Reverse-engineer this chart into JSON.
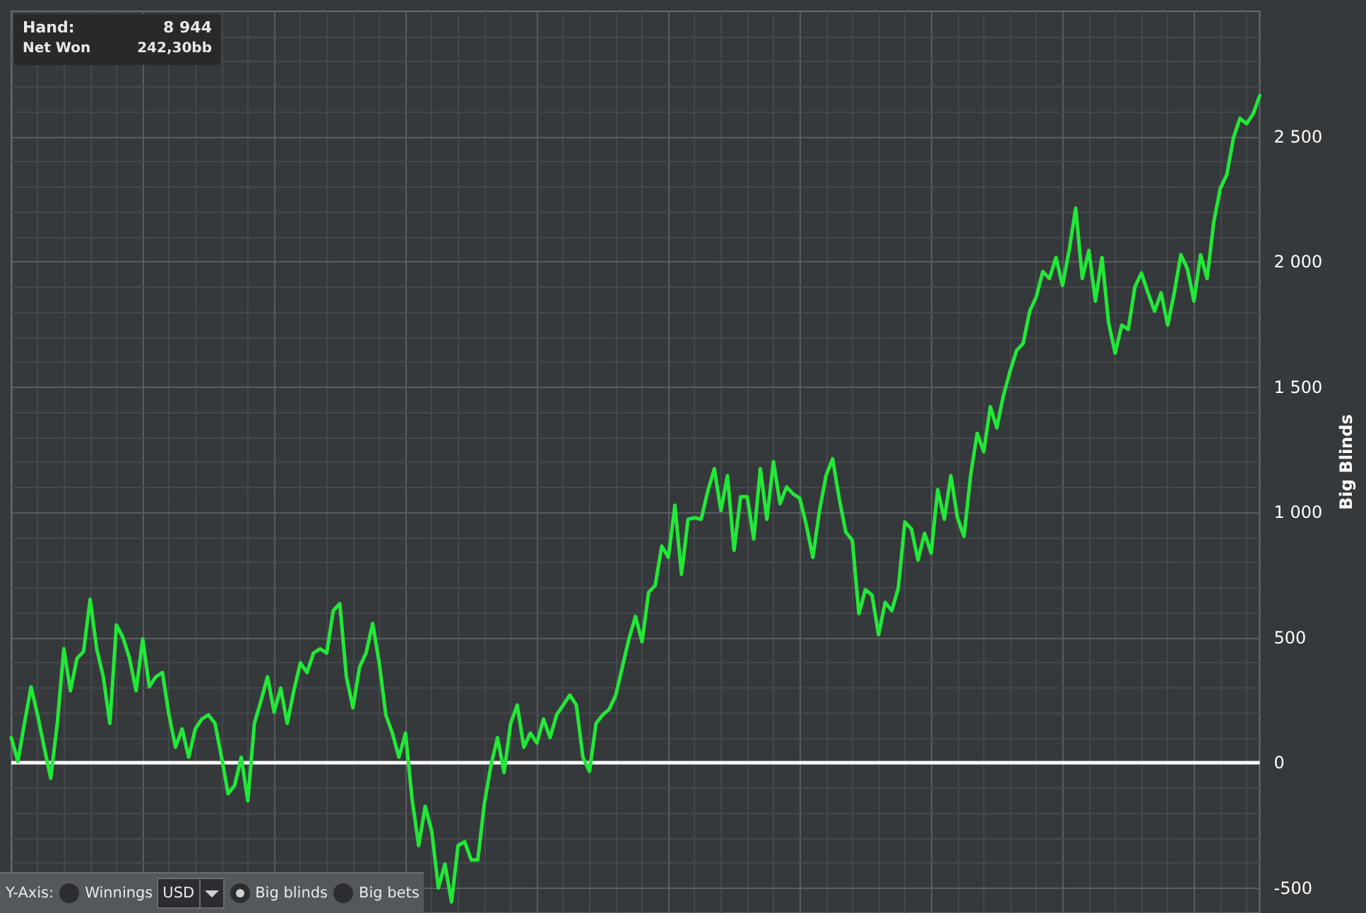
{
  "chart_data": {
    "type": "line",
    "ylabel": "Big Blinds",
    "categories": [
      null,
      null,
      null,
      null,
      null,
      null,
      null,
      null,
      null,
      null,
      null,
      null,
      null,
      null,
      null,
      null,
      null,
      null,
      null,
      null,
      null,
      null,
      null,
      null,
      null,
      null,
      null,
      null,
      null,
      null,
      null,
      null,
      null,
      null,
      null,
      null,
      null,
      null,
      null,
      null,
      null,
      null,
      null,
      null,
      null,
      null,
      null,
      null,
      null,
      null,
      null,
      null,
      null,
      null,
      null,
      null,
      null,
      null,
      null,
      null,
      null,
      null,
      null,
      null,
      null,
      null,
      null,
      null,
      null,
      null,
      null,
      null,
      null,
      null,
      null,
      null,
      null,
      null,
      null,
      null,
      null,
      null,
      null,
      null,
      null,
      null,
      null,
      null,
      null,
      null,
      null,
      null,
      null,
      null,
      null,
      null,
      null,
      null,
      null,
      null,
      null,
      null,
      null,
      null,
      null,
      null,
      null,
      null,
      null,
      null,
      null,
      null,
      null,
      null,
      null,
      null,
      null,
      null,
      null,
      null,
      null,
      null,
      null,
      null,
      null,
      null,
      null,
      null,
      null,
      null,
      null,
      null,
      null,
      null,
      null,
      null,
      null,
      null,
      null,
      null,
      null,
      null,
      null,
      null,
      null,
      null,
      null,
      null,
      null,
      null,
      null,
      null,
      null,
      null,
      null,
      null,
      null,
      null,
      null,
      null,
      null,
      null,
      null,
      null,
      null,
      null,
      null,
      null,
      null,
      null,
      null,
      null,
      null,
      null,
      null,
      null,
      null,
      null,
      null,
      null,
      null,
      null,
      null,
      null,
      null,
      null,
      null,
      null,
      null,
      null,
      null
    ],
    "series": [
      {
        "color": "#22e838",
        "values": [
          100,
          5,
          157,
          303,
          191,
          62,
          -62,
          157,
          455,
          287,
          416,
          444,
          652,
          455,
          343,
          157,
          550,
          500,
          416,
          287,
          494,
          303,
          343,
          360,
          191,
          62,
          135,
          22,
          135,
          174,
          191,
          157,
          22,
          -124,
          -90,
          22,
          -152,
          157,
          247,
          343,
          202,
          298,
          157,
          287,
          399,
          360,
          438,
          455,
          438,
          607,
          635,
          343,
          219,
          382,
          438,
          556,
          399,
          191,
          118,
          22,
          118,
          -146,
          -331,
          -174,
          -275,
          -500,
          -405,
          -556,
          -331,
          -315,
          -388,
          -388,
          -163,
          -11,
          100,
          -39,
          157,
          230,
          62,
          118,
          79,
          174,
          100,
          191,
          230,
          270,
          230,
          22,
          -34,
          157,
          191,
          213,
          270,
          382,
          494,
          584,
          483,
          680,
          708,
          865,
          820,
          1028,
          753,
          972,
          978,
          972,
          1084,
          1174,
          1006,
          1146,
          848,
          1062,
          1062,
          893,
          1174,
          972,
          1202,
          1034,
          1101,
          1073,
          1056,
          949,
          820,
          1006,
          1146,
          1213,
          1056,
          921,
          888,
          595,
          691,
          669,
          511,
          640,
          607,
          697,
          961,
          933,
          809,
          916,
          837,
          1090,
          972,
          1146,
          978,
          904,
          1146,
          1315,
          1242,
          1421,
          1337,
          1466,
          1562,
          1646,
          1674,
          1803,
          1860,
          1961,
          1933,
          2017,
          1905,
          2045,
          2214,
          1933,
          2045,
          1843,
          2017,
          1758,
          1635,
          1747,
          1730,
          1899,
          1955,
          1876,
          1803,
          1876,
          1747,
          1876,
          2028,
          1972,
          1843,
          2028,
          1933,
          2157,
          2292,
          2348,
          2494,
          2573,
          2551,
          2590,
          2663
        ]
      }
    ],
    "ylim": [
      -600,
      3000
    ],
    "yticks": [
      -500,
      0,
      500,
      {
        "value": 1000,
        "label": "1 000"
      },
      {
        "value": 1500,
        "label": "1 500"
      },
      {
        "value": 2000,
        "label": "2 000"
      },
      {
        "value": 2500,
        "label": "2 500"
      }
    ],
    "ref_lines": [
      {
        "axis": "y",
        "value": 0,
        "color": "#ffffff"
      }
    ],
    "grid": true,
    "tick_labels": "y",
    "marker": "none",
    "line_style": "solid",
    "annotations": [
      "Hand:",
      "8 944",
      "Net Won",
      "242,30bb",
      "Y-Axis:",
      "Winnings",
      "USD",
      "Big blinds",
      "Big bets"
    ]
  }
}
